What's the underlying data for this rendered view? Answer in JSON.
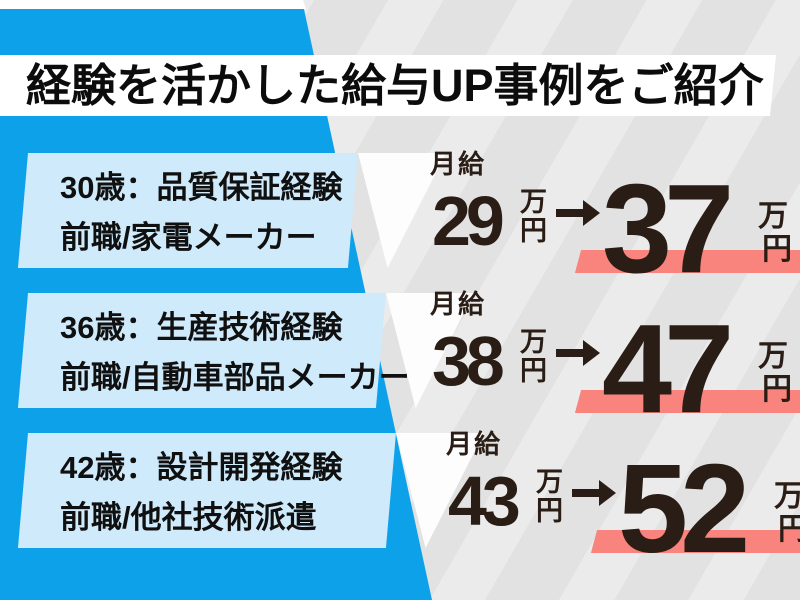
{
  "title": "経験を活かした給与UP事例をご紹介",
  "rows": [
    {
      "profile_line1": "30歳：品質保証経験",
      "profile_line2": "前職/家電メーカー",
      "salary_label": "月給",
      "before_value": "29",
      "after_value": "37",
      "unit_top": "万",
      "unit_bottom": "円"
    },
    {
      "profile_line1": "36歳：生産技術経験",
      "profile_line2": "前職/自動車部品メーカー",
      "salary_label": "月給",
      "before_value": "38",
      "after_value": "47",
      "unit_top": "万",
      "unit_bottom": "円"
    },
    {
      "profile_line1": "42歳：設計開発経験",
      "profile_line2": "前職/他社技術派遣",
      "salary_label": "月給",
      "before_value": "43",
      "after_value": "52",
      "unit_top": "万",
      "unit_bottom": "円"
    }
  ],
  "colors": {
    "deep_blue": "#0da1ea",
    "light_blue": "#cfeafb",
    "pink_highlight": "#f9837d",
    "gray_background": "#e3e3e4",
    "text_dark": "#2a1d15",
    "banner_white": "#ffffff"
  }
}
